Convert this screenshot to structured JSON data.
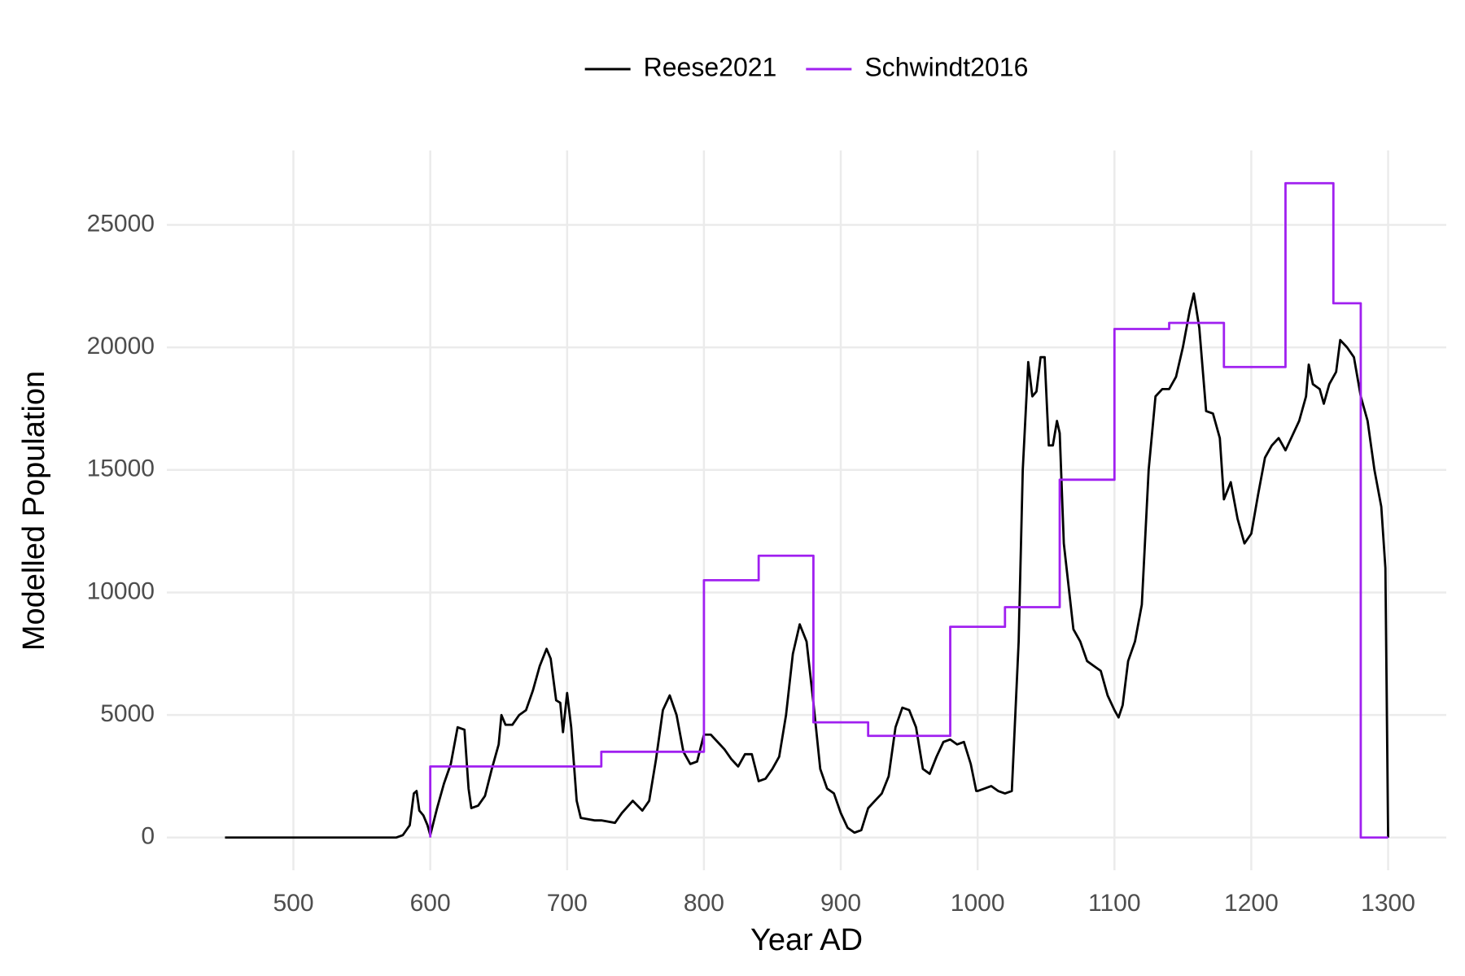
{
  "chart_data": {
    "type": "line",
    "x_label": "Year AD",
    "y_label": "Modelled Population",
    "legend": "top",
    "grid": true,
    "xlim": [
      407.5,
      1342.5
    ],
    "ylim": [
      -1335,
      28035
    ],
    "xticks": [
      500,
      600,
      700,
      800,
      900,
      1000,
      1100,
      1200,
      1300
    ],
    "yticks": [
      0,
      5000,
      10000,
      15000,
      20000,
      25000
    ],
    "series": [
      {
        "name": "Reese2021",
        "color": "#000000",
        "x": [
          450,
          500,
          550,
          575,
          580,
          585,
          588,
          590,
          592,
          595,
          598,
          600,
          605,
          610,
          615,
          620,
          625,
          628,
          630,
          635,
          640,
          645,
          650,
          652,
          655,
          660,
          665,
          670,
          675,
          680,
          685,
          688,
          692,
          695,
          697,
          700,
          703,
          707,
          710,
          720,
          725,
          735,
          740,
          748,
          755,
          760,
          765,
          770,
          775,
          780,
          785,
          790,
          795,
          800,
          805,
          810,
          815,
          820,
          825,
          830,
          835,
          840,
          845,
          850,
          855,
          860,
          865,
          870,
          875,
          880,
          885,
          890,
          895,
          900,
          905,
          910,
          915,
          920,
          925,
          930,
          935,
          940,
          945,
          950,
          955,
          960,
          965,
          970,
          975,
          980,
          985,
          990,
          995,
          999,
          1000,
          1005,
          1010,
          1015,
          1020,
          1025,
          1030,
          1033,
          1037,
          1040,
          1043,
          1046,
          1049,
          1052,
          1055,
          1058,
          1060,
          1063,
          1067,
          1070,
          1075,
          1080,
          1085,
          1090,
          1095,
          1100,
          1103,
          1106,
          1110,
          1115,
          1120,
          1125,
          1130,
          1135,
          1140,
          1145,
          1150,
          1155,
          1158,
          1162,
          1167,
          1172,
          1177,
          1180,
          1185,
          1190,
          1195,
          1200,
          1205,
          1210,
          1215,
          1220,
          1225,
          1230,
          1235,
          1240,
          1242,
          1245,
          1250,
          1253,
          1257,
          1262,
          1265,
          1270,
          1275,
          1280,
          1285,
          1290,
          1295,
          1298,
          1300
        ],
        "values": [
          0,
          0,
          0,
          0,
          100,
          500,
          1800,
          1900,
          1100,
          900,
          500,
          100,
          1200,
          2200,
          3000,
          4500,
          4400,
          2000,
          1200,
          1300,
          1700,
          2800,
          3800,
          5000,
          4600,
          4600,
          5000,
          5200,
          6000,
          7000,
          7700,
          7300,
          5600,
          5500,
          4300,
          5900,
          4500,
          1500,
          800,
          700,
          700,
          600,
          1000,
          1500,
          1100,
          1500,
          3200,
          5200,
          5800,
          5000,
          3500,
          3000,
          3100,
          4200,
          4200,
          3900,
          3600,
          3200,
          2900,
          3400,
          3400,
          2300,
          2400,
          2800,
          3300,
          5000,
          7500,
          8700,
          8000,
          5500,
          2800,
          2000,
          1800,
          1000,
          400,
          200,
          300,
          1200,
          1500,
          1800,
          2500,
          4500,
          5300,
          5200,
          4500,
          2800,
          2600,
          3300,
          3900,
          4000,
          3800,
          3900,
          3000,
          1900,
          1900,
          2000,
          2100,
          1900,
          1800,
          1900,
          8000,
          15000,
          19400,
          18000,
          18200,
          19600,
          19600,
          16000,
          16000,
          17000,
          16500,
          12000,
          10000,
          8500,
          8000,
          7200,
          7000,
          6800,
          5800,
          5200,
          4900,
          5400,
          7200,
          8000,
          9500,
          15000,
          18000,
          18300,
          18300,
          18800,
          20000,
          21500,
          22200,
          20800,
          17400,
          17300,
          16300,
          13800,
          14500,
          13000,
          12000,
          12400,
          14000,
          15500,
          16000,
          16300,
          15800,
          16400,
          17000,
          18000,
          19300,
          18500,
          18300,
          17700,
          18500,
          19000,
          20300,
          20000,
          19600,
          18000,
          17000,
          15000,
          13500,
          11000,
          0
        ]
      },
      {
        "name": "Schwindt2016",
        "color": "#a020f0",
        "x": [
          600,
          600,
          725,
          725,
          800,
          800,
          840,
          840,
          880,
          880,
          920,
          920,
          980,
          980,
          1020,
          1020,
          1060,
          1060,
          1100,
          1100,
          1140,
          1140,
          1180,
          1180,
          1225,
          1225,
          1260,
          1260,
          1280,
          1280,
          1300
        ],
        "values": [
          0,
          2900,
          2900,
          3500,
          3500,
          10500,
          10500,
          11500,
          11500,
          4700,
          4700,
          4150,
          4150,
          8600,
          8600,
          9400,
          9400,
          14600,
          14600,
          20750,
          20750,
          21000,
          21000,
          19200,
          19200,
          26700,
          26700,
          21800,
          21800,
          0,
          0
        ]
      }
    ]
  }
}
